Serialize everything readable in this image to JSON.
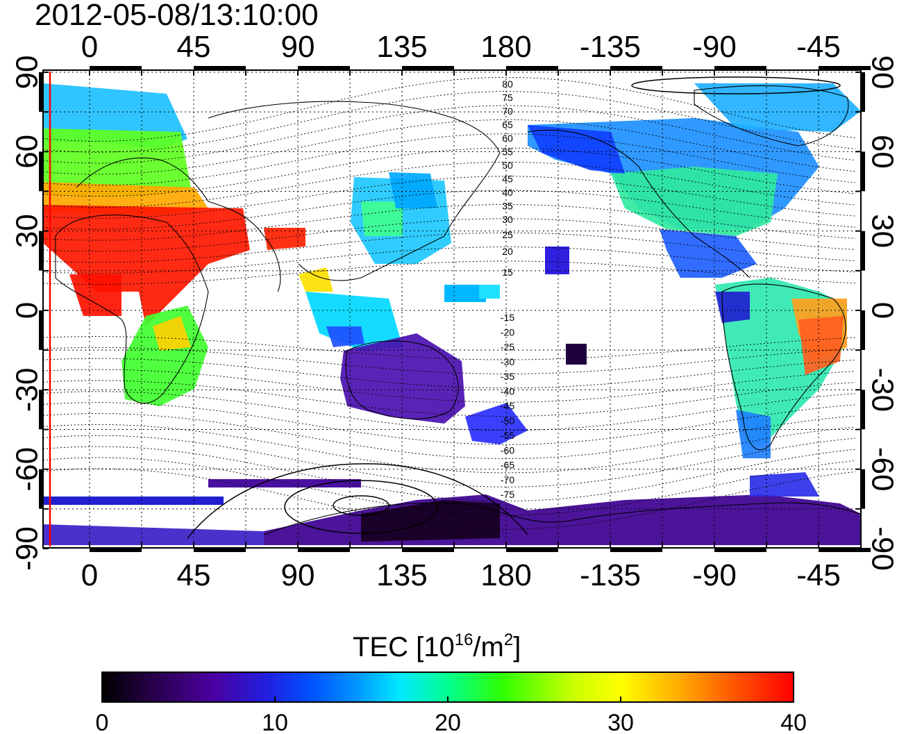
{
  "timestamp": "2012-05-08/13:10:00",
  "axes": {
    "top_lon_labels": [
      "0",
      "45",
      "90",
      "135",
      "180",
      "-135",
      "-90",
      "-45"
    ],
    "bottom_lon_labels": [
      "0",
      "45",
      "90",
      "135",
      "180",
      "-135",
      "-90",
      "-45"
    ],
    "left_lat_labels": [
      "90",
      "60",
      "30",
      "0",
      "-30",
      "-60",
      "-90"
    ],
    "right_lat_labels": [
      "90",
      "60",
      "30",
      "0",
      "-30",
      "-60",
      "-90"
    ]
  },
  "contour_labels": [
    "80",
    "75",
    "70",
    "65",
    "60",
    "55",
    "50",
    "45",
    "40",
    "35",
    "30",
    "25",
    "20",
    "15",
    "-15",
    "-20",
    "-25",
    "-30",
    "-35",
    "-40",
    "-45",
    "-50",
    "-55",
    "-60",
    "-65",
    "-70",
    "-75"
  ],
  "colorbar": {
    "title": "TEC  [10",
    "title_sup": "16",
    "title_mid": "/m",
    "title_sup2": "2",
    "title_end": "]",
    "ticks": [
      "0",
      "10",
      "20",
      "30",
      "40"
    ],
    "min": 0,
    "max": 40,
    "stops": [
      "#000000",
      "#3a0070",
      "#4b00a0",
      "#2a1ad0",
      "#0030ff",
      "#0080ff",
      "#00e0ff",
      "#00ff80",
      "#40ff00",
      "#c0ff00",
      "#ffff00",
      "#ffb000",
      "#ff6000",
      "#ff0000"
    ]
  },
  "colors": {
    "red_marker": "#ff0000",
    "grid": "#000000"
  }
}
